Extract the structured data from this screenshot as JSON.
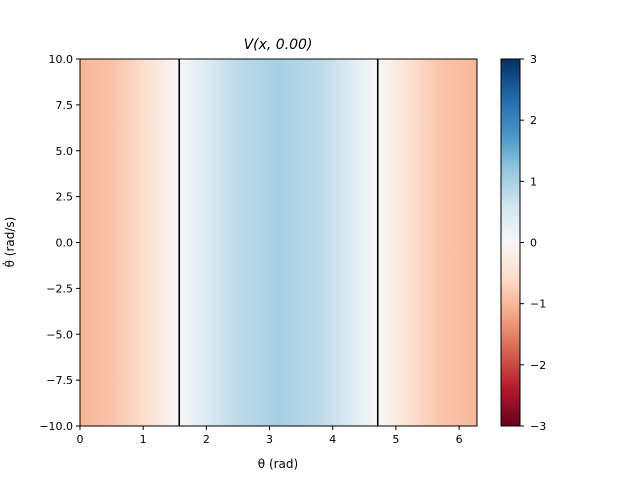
{
  "chart_data": {
    "type": "heatmap",
    "title": "V(x, 0.00)",
    "xlabel": "θ (rad)",
    "ylabel": "θ̇ (rad/s)",
    "xlim": [
      0,
      6.2832
    ],
    "ylim": [
      -10,
      10
    ],
    "x_ticks": [
      0,
      1,
      2,
      3,
      4,
      5,
      6
    ],
    "x_tick_labels": [
      "0",
      "1",
      "2",
      "3",
      "4",
      "5",
      "6"
    ],
    "y_ticks": [
      10,
      7.5,
      5,
      2.5,
      0,
      -2.5,
      -5,
      -7.5,
      -10
    ],
    "y_tick_labels": [
      "10.0",
      "7.5",
      "5.0",
      "2.5",
      "0.0",
      "−2.5",
      "−5.0",
      "−7.5",
      "−10.0"
    ],
    "field": "V(θ, θ̇) = −cos(θ), independent of θ̇",
    "field_samples": {
      "theta": [
        0,
        0.5,
        1.0,
        1.5708,
        2.0,
        2.5,
        3.1416,
        3.75,
        4.25,
        4.7124,
        5.25,
        5.75,
        6.2832
      ],
      "V": [
        -1.0,
        -0.88,
        -0.54,
        0.0,
        0.42,
        0.8,
        1.0,
        0.82,
        0.45,
        0.0,
        -0.51,
        -0.86,
        -1.0
      ]
    },
    "contour_level": 0,
    "contour_x": [
      1.5708,
      4.7124
    ],
    "colormap": "RdBu",
    "colorbar": {
      "vmin": -3,
      "vmax": 3,
      "ticks": [
        3,
        2,
        1,
        0,
        -1,
        -2,
        -3
      ],
      "tick_labels": [
        "3",
        "2",
        "1",
        "0",
        "−1",
        "−2",
        "−3"
      ]
    },
    "grid": false,
    "legend": "none"
  }
}
